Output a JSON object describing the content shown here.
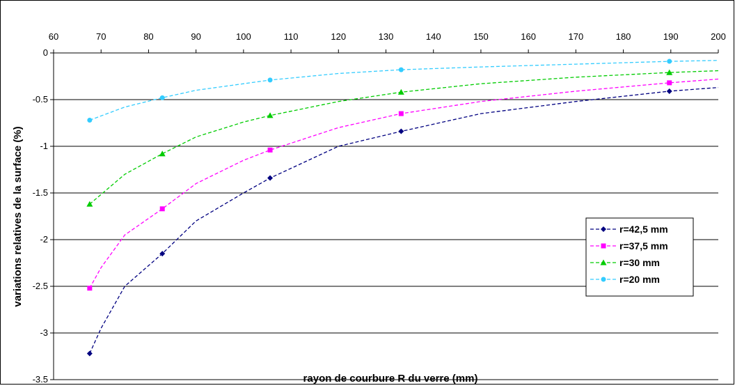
{
  "chart_data": {
    "type": "line",
    "title": "",
    "xlabel": "rayon de courbure R du verre (mm)",
    "ylabel": "variations relatives de la surface (%)",
    "xlim": [
      60,
      200
    ],
    "ylim": [
      -3.5,
      0
    ],
    "x_ticks": [
      60,
      70,
      80,
      90,
      100,
      110,
      120,
      130,
      140,
      150,
      160,
      170,
      180,
      190,
      200
    ],
    "y_ticks": [
      0,
      -0.5,
      -1,
      -1.5,
      -2,
      -2.5,
      -3,
      -3.5
    ],
    "x_axis_position": "top",
    "grid": "horizontal",
    "legend_position": "right",
    "marker_x": [
      67.6,
      82.9,
      105.6,
      133.2,
      189.7
    ],
    "series": [
      {
        "name": "r=42,5 mm",
        "color": "#000080",
        "marker": "diamond",
        "x": [
          67.6,
          70,
          75,
          82.9,
          90,
          100,
          105.6,
          120,
          133.2,
          150,
          170,
          189.7,
          200
        ],
        "y": [
          -3.22,
          -2.95,
          -2.5,
          -2.15,
          -1.8,
          -1.5,
          -1.34,
          -1.0,
          -0.84,
          -0.65,
          -0.52,
          -0.41,
          -0.37
        ]
      },
      {
        "name": "r=37,5 mm",
        "color": "#ff00ff",
        "marker": "square",
        "x": [
          67.6,
          70,
          75,
          82.9,
          90,
          100,
          105.6,
          120,
          133.2,
          150,
          170,
          189.7,
          200
        ],
        "y": [
          -2.52,
          -2.3,
          -1.95,
          -1.67,
          -1.4,
          -1.15,
          -1.04,
          -0.8,
          -0.65,
          -0.52,
          -0.41,
          -0.32,
          -0.28
        ]
      },
      {
        "name": "r=30 mm",
        "color": "#00cc00",
        "marker": "triangle",
        "x": [
          67.6,
          75,
          82.9,
          90,
          100,
          105.6,
          120,
          133.2,
          150,
          170,
          189.7,
          200
        ],
        "y": [
          -1.62,
          -1.3,
          -1.08,
          -0.9,
          -0.74,
          -0.67,
          -0.52,
          -0.42,
          -0.33,
          -0.26,
          -0.21,
          -0.19
        ]
      },
      {
        "name": "r=20 mm",
        "color": "#33ccff",
        "marker": "circle",
        "x": [
          67.6,
          75,
          82.9,
          90,
          100,
          105.6,
          120,
          133.2,
          150,
          170,
          189.7,
          200
        ],
        "y": [
          -0.72,
          -0.58,
          -0.48,
          -0.4,
          -0.33,
          -0.29,
          -0.22,
          -0.18,
          -0.15,
          -0.12,
          -0.09,
          -0.08
        ]
      }
    ]
  }
}
